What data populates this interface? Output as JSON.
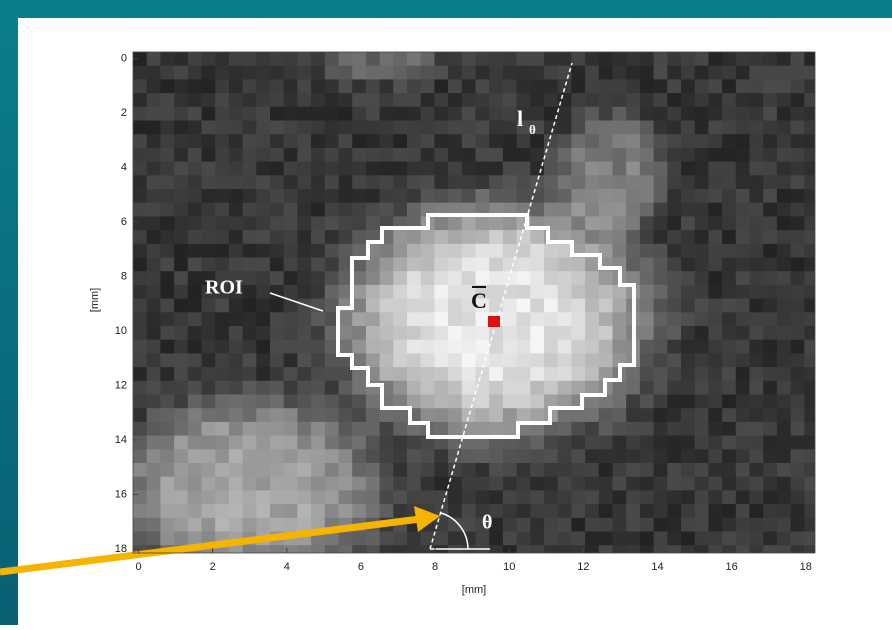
{
  "chart_data": {
    "type": "image",
    "xlabel": "[mm]",
    "ylabel": "[mm]",
    "xlim": [
      -0.15,
      18.25
    ],
    "ylim": [
      -0.25,
      18.15
    ],
    "y_reversed": true,
    "xticks": [
      0,
      2,
      4,
      6,
      8,
      10,
      12,
      14,
      16,
      18
    ],
    "yticks": [
      0,
      2,
      4,
      6,
      8,
      10,
      12,
      14,
      16,
      18
    ],
    "annotations": {
      "roi": "ROI",
      "centroid": "C",
      "line": "l",
      "line_subscript": "θ",
      "angle": "θ"
    }
  }
}
